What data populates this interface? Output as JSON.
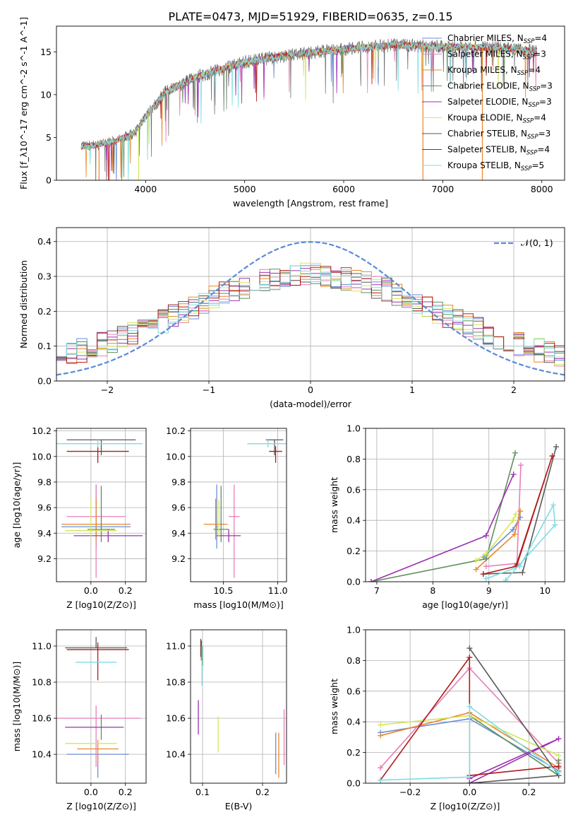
{
  "figure": {
    "title": "PLATE=0473, MJD=51929, FIBERID=0635, z=0.15"
  },
  "colors": {
    "models": [
      "#6a8fd8",
      "#e87fb8",
      "#e8882a",
      "#5e8f5e",
      "#9b30b0",
      "#d4e65a",
      "#5a5a5a",
      "#b01c1c",
      "#7fdde3"
    ]
  },
  "legend": {
    "entries": [
      "Chabrier MILES, N_SSP=4",
      "Salpeter MILES, N_SSP=3",
      "Kroupa MILES, N_SSP=4",
      "Chabrier ELODIE, N_SSP=3",
      "Salpeter ELODIE, N_SSP=3",
      "Kroupa ELODIE, N_SSP=4",
      "Chabrier STELIB, N_SSP=3",
      "Salpeter STELIB, N_SSP=4",
      "Kroupa STELIB, N_SSP=5"
    ],
    "gaussian_label": "𝒩(0, 1)"
  },
  "chart_data": [
    {
      "id": "spectrum",
      "type": "line",
      "xlabel": "wavelength [Angstrom, rest frame]",
      "ylabel": "Flux [f_λ10^-17 erg cm^-2 s^-1 A^-1]",
      "xlim": [
        3100,
        8230
      ],
      "ylim": [
        0,
        18
      ],
      "xticks": [
        4000,
        5000,
        6000,
        7000,
        8000
      ],
      "yticks": [
        0,
        5,
        10,
        15
      ],
      "continuum": {
        "x": [
          3350,
          3500,
          3700,
          3900,
          4000,
          4200,
          4500,
          5000,
          5500,
          6000,
          6500,
          7000,
          7500,
          7950
        ],
        "y": [
          3.9,
          4.1,
          4.6,
          5.6,
          7.5,
          10.3,
          12.0,
          13.8,
          14.7,
          15.3,
          15.8,
          15.6,
          15.5,
          15.1
        ]
      },
      "drops_to_zero": [
        3530,
        3930,
        6800,
        7400
      ]
    },
    {
      "id": "residual-histogram",
      "type": "histogram",
      "xlabel": "(data-model)/error",
      "ylabel": "Normed distribution",
      "xlim": [
        -2.5,
        2.5
      ],
      "ylim": [
        0,
        0.44
      ],
      "xticks": [
        -2,
        -1,
        0,
        1,
        2
      ],
      "yticks": [
        0.0,
        0.1,
        0.2,
        0.3,
        0.4
      ],
      "gaussian": {
        "mean": 0,
        "sigma": 1
      },
      "bins": {
        "start": -2.5,
        "width": 0.1,
        "count": 50
      }
    },
    {
      "id": "age-vs-Z",
      "type": "errorbar",
      "xlabel": "Z [log10(Z/Z⊙)]",
      "ylabel": "age [log10(age/yr)]",
      "xlim": [
        -0.2,
        0.32
      ],
      "ylim": [
        9.02,
        10.22
      ],
      "xticks": [
        0.0,
        0.2
      ],
      "yticks": [
        9.2,
        9.4,
        9.6,
        9.8,
        10.0,
        10.2
      ],
      "points": [
        {
          "x": 0.03,
          "xerr": 0.2,
          "y": 9.45,
          "yerr": [
            0.17,
            0.33
          ]
        },
        {
          "x": 0.03,
          "xerr": 0.17,
          "y": 9.53,
          "yerr": [
            0.48,
            0.25
          ]
        },
        {
          "x": 0.03,
          "xerr": 0.2,
          "y": 9.47,
          "yerr": [
            0.12,
            0.2
          ]
        },
        {
          "x": 0.06,
          "xerr": 0.08,
          "y": 9.43,
          "yerr": [
            0.1,
            0.34
          ]
        },
        {
          "x": 0.1,
          "xerr": 0.2,
          "y": 9.38,
          "yerr": [
            0.05,
            0.05
          ]
        },
        {
          "x": 0.0,
          "xerr": 0.15,
          "y": 9.42,
          "yerr": [
            0.05,
            0.24
          ]
        },
        {
          "x": 0.06,
          "xerr": 0.2,
          "y": 10.13,
          "yerr": [
            0.12,
            0.0
          ]
        },
        {
          "x": 0.04,
          "xerr": 0.18,
          "y": 10.04,
          "yerr": [
            0.09,
            0.04
          ]
        },
        {
          "x": 0.04,
          "xerr": 0.26,
          "y": 10.1,
          "yerr": [
            0.03,
            0.03
          ]
        }
      ]
    },
    {
      "id": "age-vs-mass",
      "type": "errorbar",
      "xlabel": "mass [log10(M/M⊙)]",
      "ylabel": "",
      "xlim": [
        10.2,
        11.08
      ],
      "ylim": [
        9.02,
        10.22
      ],
      "xticks": [
        10.5,
        11.0
      ],
      "yticks": [
        9.2,
        9.4,
        9.6,
        9.8,
        10.0,
        10.2
      ],
      "points": [
        {
          "x": 10.44,
          "xerr": 0.01,
          "y": 9.45,
          "yerr": [
            0.17,
            0.33
          ]
        },
        {
          "x": 10.6,
          "xerr": 0.05,
          "y": 9.53,
          "yerr": [
            0.48,
            0.25
          ]
        },
        {
          "x": 10.43,
          "xerr": 0.11,
          "y": 9.47,
          "yerr": [
            0.12,
            0.2
          ]
        },
        {
          "x": 10.48,
          "xerr": 0.07,
          "y": 9.43,
          "yerr": [
            0.1,
            0.34
          ]
        },
        {
          "x": 10.55,
          "xerr": 0.11,
          "y": 9.38,
          "yerr": [
            0.05,
            0.05
          ]
        },
        {
          "x": 10.46,
          "xerr": 0.01,
          "y": 9.42,
          "yerr": [
            0.05,
            0.24
          ]
        },
        {
          "x": 10.97,
          "xerr": 0.08,
          "y": 10.13,
          "yerr": [
            0.12,
            0.0
          ]
        },
        {
          "x": 10.98,
          "xerr": 0.06,
          "y": 10.04,
          "yerr": [
            0.09,
            0.04
          ]
        },
        {
          "x": 10.91,
          "xerr": 0.19,
          "y": 10.1,
          "yerr": [
            0.03,
            0.03
          ]
        }
      ]
    },
    {
      "id": "mass-weight-vs-age",
      "type": "line",
      "xlabel": "age [log10(age/yr)]",
      "ylabel": "mass weight",
      "xlim": [
        6.8,
        10.35
      ],
      "ylim": [
        0,
        1
      ],
      "xticks": [
        7,
        8,
        9,
        10
      ],
      "yticks": [
        0.0,
        0.2,
        0.4,
        0.6,
        0.8,
        1.0
      ],
      "series": [
        {
          "x": [
            8.9,
            9.43,
            9.56
          ],
          "y": [
            0.16,
            0.34,
            0.42
          ]
        },
        {
          "x": [
            8.95,
            9.5,
            9.57
          ],
          "y": [
            0.1,
            0.12,
            0.76
          ]
        },
        {
          "x": [
            8.77,
            9.46,
            9.56
          ],
          "y": [
            0.08,
            0.31,
            0.46
          ]
        },
        {
          "x": [
            6.9,
            8.95,
            9.47
          ],
          "y": [
            0.0,
            0.15,
            0.84
          ]
        },
        {
          "x": [
            6.9,
            8.95,
            9.44
          ],
          "y": [
            0.0,
            0.3,
            0.7
          ]
        },
        {
          "x": [
            8.77,
            8.95,
            9.43,
            9.48
          ],
          "y": [
            0.14,
            0.18,
            0.4,
            0.44
          ]
        },
        {
          "x": [
            8.9,
            9.6,
            10.2
          ],
          "y": [
            0.05,
            0.06,
            0.88
          ]
        },
        {
          "x": [
            8.9,
            9.48,
            10.13,
            9.5
          ],
          "y": [
            0.05,
            0.1,
            0.82,
            0.11
          ]
        },
        {
          "x": [
            8.95,
            9.55,
            10.15,
            10.18,
            9.3
          ],
          "y": [
            0.02,
            0.1,
            0.5,
            0.37,
            0.01
          ]
        }
      ]
    },
    {
      "id": "mass-vs-Z",
      "type": "errorbar",
      "xlabel": "Z [log10(Z/Z⊙)]",
      "ylabel": "mass [log10(M/M⊙)]",
      "xlim": [
        -0.2,
        0.32
      ],
      "ylim": [
        10.24,
        11.09
      ],
      "xticks": [
        0.0,
        0.2
      ],
      "yticks": [
        10.4,
        10.6,
        10.8,
        11.0
      ],
      "points": [
        {
          "x": 0.04,
          "xerr": 0.18,
          "y": 10.4,
          "yerr": [
            0.13,
            0.0
          ]
        },
        {
          "x": 0.03,
          "xerr": 0.26,
          "y": 10.6,
          "yerr": [
            0.27,
            0.07
          ]
        },
        {
          "x": 0.04,
          "xerr": 0.12,
          "y": 10.43,
          "yerr": [
            0.08,
            0.05
          ]
        },
        {
          "x": 0.06,
          "xerr": 0.0,
          "y": 10.48,
          "yerr": [
            0.0,
            0.14
          ]
        },
        {
          "x": 0.02,
          "xerr": 0.17,
          "y": 10.55,
          "yerr": [
            0.0,
            0.0
          ]
        },
        {
          "x": 0.0,
          "xerr": 0.15,
          "y": 10.46,
          "yerr": [
            0.0,
            0.0
          ]
        },
        {
          "x": 0.03,
          "xerr": 0.18,
          "y": 10.99,
          "yerr": [
            0.0,
            0.06
          ]
        },
        {
          "x": 0.04,
          "xerr": 0.18,
          "y": 10.98,
          "yerr": [
            0.17,
            0.04
          ]
        },
        {
          "x": 0.03,
          "xerr": 0.12,
          "y": 10.91,
          "yerr": [
            0.0,
            0.0
          ]
        }
      ]
    },
    {
      "id": "mass-vs-EBV",
      "type": "errorbar",
      "xlabel": "E(B-V)",
      "ylabel": "",
      "xlim": [
        0.08,
        0.24
      ],
      "ylim": [
        10.24,
        11.09
      ],
      "xticks": [
        0.1,
        0.2
      ],
      "yticks": [
        10.4,
        10.6,
        10.8,
        11.0
      ],
      "points": [
        {
          "x": 0.222,
          "xerr": 0,
          "y": 10.38,
          "yerr": [
            0.09,
            0.14
          ]
        },
        {
          "x": 0.236,
          "xerr": 0,
          "y": 10.47,
          "yerr": [
            0.13,
            0.18
          ]
        },
        {
          "x": 0.227,
          "xerr": 0,
          "y": 10.39,
          "yerr": [
            0.12,
            0.13
          ]
        },
        {
          "x": 0.1,
          "xerr": 0,
          "y": 10.95,
          "yerr": [
            0.06,
            0.05
          ]
        },
        {
          "x": 0.093,
          "xerr": 0,
          "y": 10.61,
          "yerr": [
            0.1,
            0.09
          ]
        },
        {
          "x": 0.126,
          "xerr": 0,
          "y": 10.51,
          "yerr": [
            0.1,
            0.1
          ]
        },
        {
          "x": 0.097,
          "xerr": 0,
          "y": 10.99,
          "yerr": [
            0.05,
            0.05
          ]
        },
        {
          "x": 0.098,
          "xerr": 0,
          "y": 10.97,
          "yerr": [
            0.05,
            0.06
          ]
        },
        {
          "x": 0.099,
          "xerr": 0,
          "y": 10.92,
          "yerr": [
            0.14,
            0.08
          ]
        }
      ]
    },
    {
      "id": "mass-weight-vs-Z",
      "type": "line",
      "xlabel": "Z [log10(Z/Z⊙)]",
      "ylabel": "mass weight",
      "xlim": [
        -0.35,
        0.32
      ],
      "ylim": [
        0,
        1
      ],
      "xticks": [
        -0.2,
        0.0,
        0.2
      ],
      "yticks": [
        0.0,
        0.2,
        0.4,
        0.6,
        0.8,
        1.0
      ],
      "series": [
        {
          "x": [
            -0.3,
            0.0,
            0.3
          ],
          "y": [
            0.33,
            0.42,
            0.08
          ]
        },
        {
          "x": [
            -0.3,
            0.0,
            0.3
          ],
          "y": [
            0.1,
            0.75,
            0.13
          ]
        },
        {
          "x": [
            -0.3,
            0.0,
            0.3
          ],
          "y": [
            0.31,
            0.46,
            0.1
          ]
        },
        {
          "x": [
            0.0,
            0.3,
            0.3
          ],
          "y": [
            0.44,
            0.05,
            0.15
          ]
        },
        {
          "x": [
            0.0,
            0.3,
            0.0
          ],
          "y": [
            0.03,
            0.29,
            0.0
          ]
        },
        {
          "x": [
            -0.3,
            0.0,
            0.3
          ],
          "y": [
            0.38,
            0.44,
            0.18
          ]
        },
        {
          "x": [
            0.0,
            0.3,
            0.0
          ],
          "y": [
            0.88,
            0.05,
            0.0
          ]
        },
        {
          "x": [
            -0.3,
            0.0,
            0.0,
            0.3
          ],
          "y": [
            0.02,
            0.82,
            0.05,
            0.11
          ]
        },
        {
          "x": [
            -0.3,
            0.0,
            0.0,
            0.3
          ],
          "y": [
            0.02,
            0.04,
            0.5,
            0.07
          ]
        }
      ]
    }
  ]
}
